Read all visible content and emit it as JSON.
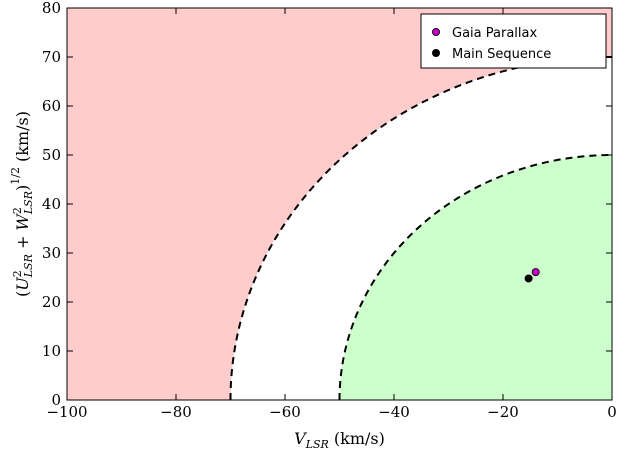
{
  "chart_data": {
    "type": "scatter",
    "title": "",
    "xlabel": {
      "base": "V",
      "sub": "LSR",
      "unit": " (km/s)"
    },
    "ylabel": {
      "open": "(",
      "u": "U",
      "u_sub": "LSR",
      "plus": " + ",
      "w": "W",
      "w_sub": "LSR",
      "close": ")",
      "power": "1/2",
      "unit": " (km/s)",
      "sq": "2"
    },
    "xlim": [
      -100,
      0
    ],
    "ylim": [
      0,
      80
    ],
    "xticks": [
      -100,
      -80,
      -60,
      -40,
      -20,
      0
    ],
    "yticks": [
      0,
      10,
      20,
      30,
      40,
      50,
      60,
      70,
      80
    ],
    "xtick_labels": [
      "−100",
      "−80",
      "−60",
      "−40",
      "−20",
      "0"
    ],
    "ytick_labels": [
      "0",
      "10",
      "20",
      "30",
      "40",
      "50",
      "60",
      "70",
      "80"
    ],
    "regions": [
      {
        "kind": "outside_circle",
        "radius": 70,
        "color": "#ffcccc"
      },
      {
        "kind": "inside_circle",
        "radius": 50,
        "color": "#ccffcc"
      }
    ],
    "boundaries": [
      {
        "radius": 70,
        "style": "dashed",
        "color": "#000000"
      },
      {
        "radius": 50,
        "style": "dashed",
        "color": "#000000"
      }
    ],
    "series": [
      {
        "name": "Gaia Parallax",
        "color": "#bf00bf",
        "points": [
          {
            "x": -14.0,
            "y": 26.1
          }
        ]
      },
      {
        "name": "Main Sequence",
        "color": "#000000",
        "points": [
          {
            "x": -15.3,
            "y": 24.8
          }
        ]
      }
    ],
    "legend": {
      "position": "top-right"
    }
  }
}
